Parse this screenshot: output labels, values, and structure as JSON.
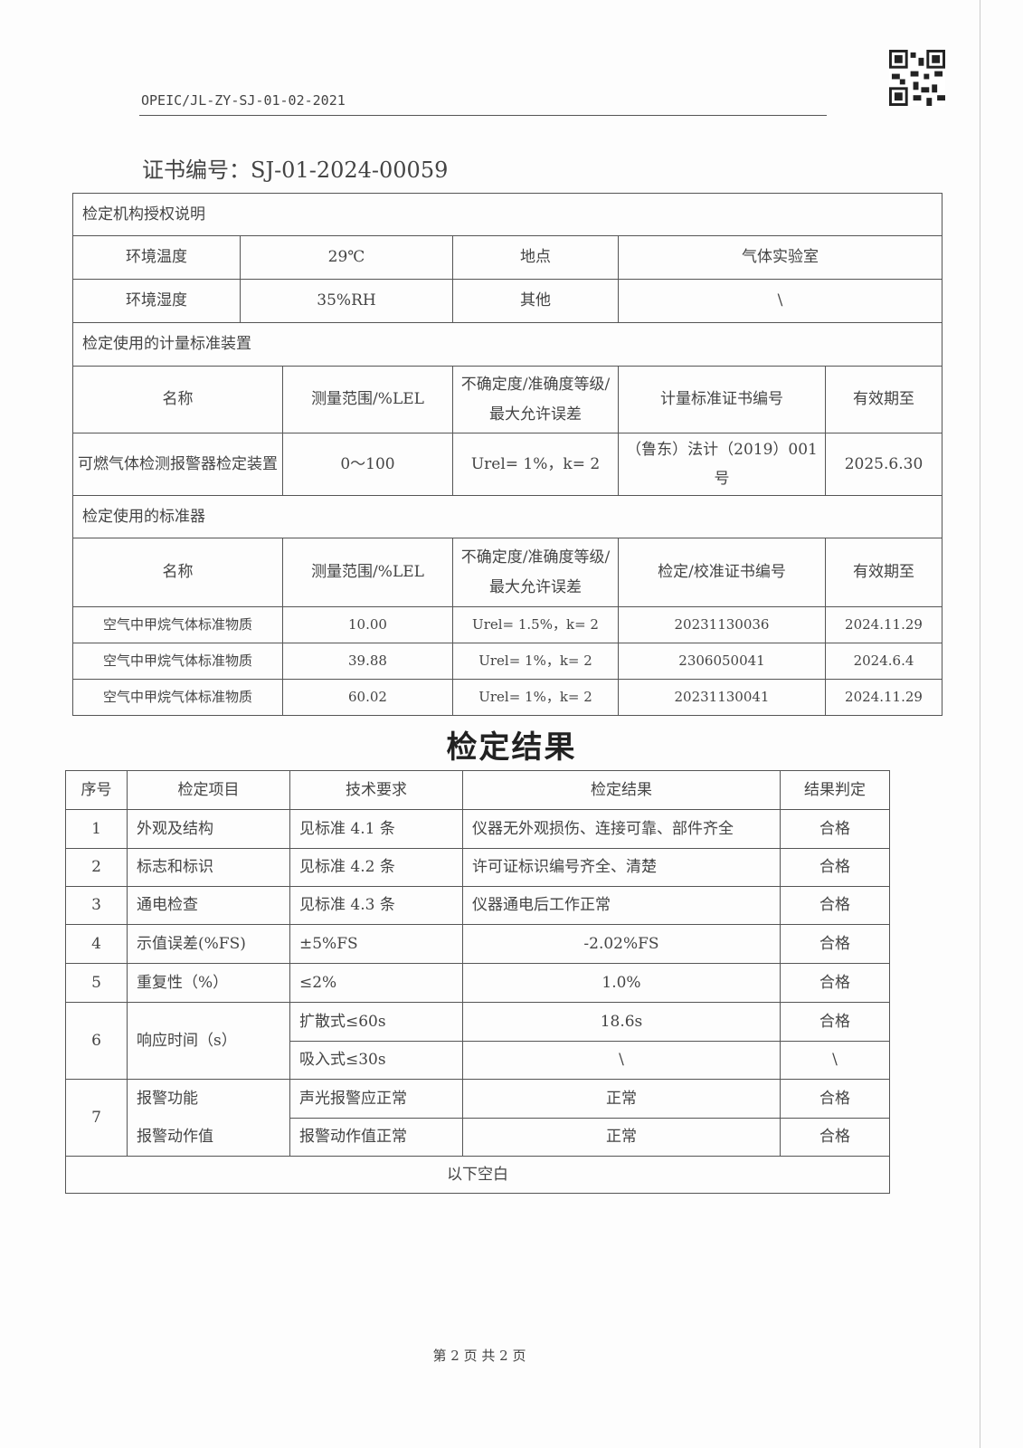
{
  "header": {
    "doc_code": "OPEIC/JL-ZY-SJ-01-02-2021",
    "cert_label": "证书编号：",
    "cert_no": "SJ-01-2024-00059"
  },
  "auth": {
    "title": "检定机构授权说明",
    "env_temp_label": "环境温度",
    "env_temp": "29℃",
    "location_label": "地点",
    "location": "气体实验室",
    "env_hum_label": "环境湿度",
    "env_hum": "35%RH",
    "other_label": "其他",
    "other": "\\"
  },
  "standard_device": {
    "title": "检定使用的计量标准装置",
    "headers": [
      "名称",
      "测量范围/%LEL",
      "不确定度/准确度等级/最大允许误差",
      "计量标准证书编号",
      "有效期至"
    ],
    "row": [
      "可燃气体检测报警器检定装置",
      "0～100",
      "Urel= 1%，k= 2",
      "（鲁东）法计（2019）001 号",
      "2025.6.30"
    ]
  },
  "standards": {
    "title": "检定使用的标准器",
    "headers": [
      "名称",
      "测量范围/%LEL",
      "不确定度/准确度等级/最大允许误差",
      "检定/校准证书编号",
      "有效期至"
    ],
    "rows": [
      [
        "空气中甲烷气体标准物质",
        "10.00",
        "Urel= 1.5%，k= 2",
        "20231130036",
        "2024.11.29"
      ],
      [
        "空气中甲烷气体标准物质",
        "39.88",
        "Urel= 1%，k= 2",
        "2306050041",
        "2024.6.4"
      ],
      [
        "空气中甲烷气体标准物质",
        "60.02",
        "Urel= 1%，k= 2",
        "20231130041",
        "2024.11.29"
      ]
    ]
  },
  "results": {
    "title": "检定结果",
    "headers": [
      "序号",
      "检定项目",
      "技术要求",
      "检定结果",
      "结果判定"
    ],
    "r1": [
      "1",
      "外观及结构",
      "见标准 4.1 条",
      "仪器无外观损伤、连接可靠、部件齐全",
      "合格"
    ],
    "r2": [
      "2",
      "标志和标识",
      "见标准 4.2 条",
      "许可证标识编号齐全、清楚",
      "合格"
    ],
    "r3": [
      "3",
      "通电检查",
      "见标准 4.3 条",
      "仪器通电后工作正常",
      "合格"
    ],
    "r4": [
      "4",
      "示值误差(%FS)",
      "±5%FS",
      "-2.02%FS",
      "合格"
    ],
    "r5": [
      "5",
      "重复性（%）",
      "≤2%",
      "1.0%",
      "合格"
    ],
    "r6": {
      "no": "6",
      "item": "响应时间（s）",
      "a": [
        "扩散式≤60s",
        "18.6s",
        "合格"
      ],
      "b": [
        "吸入式≤30s",
        "\\",
        "\\"
      ]
    },
    "r7": {
      "no": "7",
      "a": [
        "报警功能",
        "声光报警应正常",
        "正常",
        "合格"
      ],
      "b": [
        "报警动作值",
        "报警动作值正常",
        "正常",
        "合格"
      ]
    },
    "blank": "以下空白"
  },
  "footer": "第 2 页 共 2 页"
}
